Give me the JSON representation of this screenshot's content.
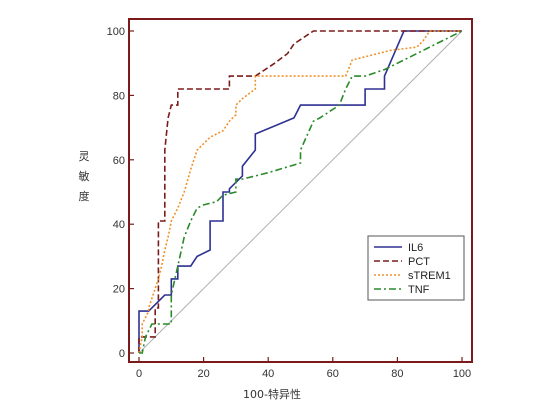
{
  "chart_data": {
    "type": "line",
    "title": "",
    "xlabel": "100-特异性",
    "ylabel": "灵敏度",
    "xlim": [
      0,
      100
    ],
    "ylim": [
      0,
      100
    ],
    "xticks": [
      0,
      20,
      40,
      60,
      80,
      100
    ],
    "yticks": [
      0,
      20,
      40,
      60,
      80,
      100
    ],
    "grid": false,
    "legend_position": "bottom-right",
    "colors": {
      "frame": "#7a1a1a",
      "reference": "#b0b0b0"
    },
    "reference_line": {
      "x": [
        0,
        100
      ],
      "y": [
        0,
        100
      ]
    },
    "series": [
      {
        "name": "IL6",
        "color": "#2e3192",
        "dash": "solid",
        "x": [
          0,
          0,
          3,
          8,
          10,
          10,
          12,
          12,
          16,
          18,
          22,
          22,
          26,
          26,
          28,
          28,
          32,
          32,
          36,
          36,
          48,
          50,
          50,
          66,
          70,
          70,
          76,
          76,
          82,
          100
        ],
        "y": [
          0,
          13,
          13,
          18,
          18,
          23,
          23,
          27,
          27,
          30,
          32,
          41,
          41,
          50,
          50,
          51,
          55,
          58,
          63,
          68,
          73,
          77,
          77,
          77,
          77,
          82,
          82,
          86,
          100,
          100
        ]
      },
      {
        "name": "PCT",
        "color": "#7b1c1c",
        "dash": "dashed",
        "x": [
          0,
          0,
          5,
          5,
          6,
          6,
          8,
          8,
          9,
          10,
          12,
          12,
          18,
          28,
          28,
          36,
          42,
          46,
          48,
          54,
          60,
          100
        ],
        "y": [
          0,
          5,
          5,
          14,
          14,
          41,
          41,
          63,
          73,
          77,
          77,
          82,
          82,
          82,
          86,
          86,
          90,
          93,
          96,
          100,
          100,
          100
        ]
      },
      {
        "name": "sTREM1",
        "color": "#f0912a",
        "dash": "dotted",
        "x": [
          0,
          1,
          1,
          3,
          3,
          6,
          7,
          8,
          9,
          10,
          12,
          14,
          16,
          18,
          20,
          22,
          24,
          26,
          28,
          30,
          30,
          32,
          36,
          36,
          40,
          64,
          66,
          70,
          74,
          78,
          86,
          88,
          90,
          100
        ],
        "y": [
          0,
          5,
          9,
          13,
          14,
          23,
          27,
          32,
          36,
          41,
          45,
          50,
          57,
          63,
          65,
          67,
          68,
          69,
          72,
          74,
          77,
          79,
          82,
          86,
          86,
          86,
          91,
          92,
          93,
          94,
          95,
          97,
          100,
          100
        ]
      },
      {
        "name": "TNF",
        "color": "#2a8a2a",
        "dash": "dashdot",
        "x": [
          0,
          1,
          2,
          4,
          10,
          10,
          12,
          14,
          16,
          18,
          20,
          24,
          26,
          30,
          30,
          32,
          36,
          40,
          50,
          50,
          54,
          56,
          62,
          64,
          66,
          70,
          76,
          82,
          90,
          100
        ],
        "y": [
          0,
          0,
          5,
          9,
          9,
          18,
          27,
          36,
          41,
          45,
          46,
          47,
          49,
          50,
          54,
          54,
          55,
          56,
          59,
          63,
          72,
          73,
          77,
          82,
          86,
          86,
          88,
          91,
          95,
          100
        ]
      }
    ]
  }
}
